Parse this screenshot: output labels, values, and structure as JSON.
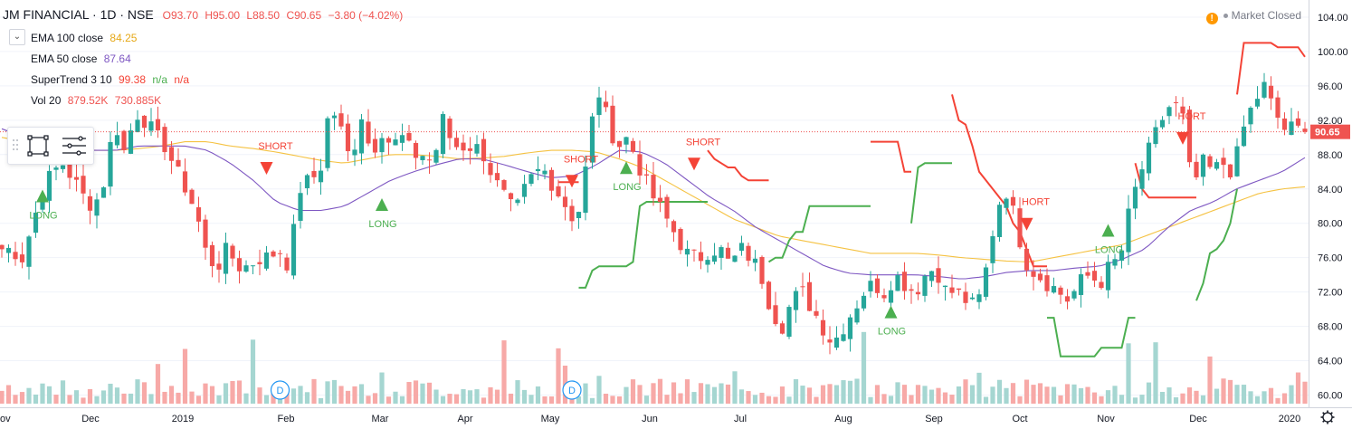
{
  "header": {
    "symbol": "JM FINANCIAL · 1D · NSE",
    "open": "O93.70",
    "high": "H95.00",
    "low": "L88.50",
    "close": "C90.65",
    "change": "−3.80 (−4.02%)",
    "market_status": "Market Closed",
    "warning_glyph": "!"
  },
  "indicators": {
    "ema100_label": "EMA 100 close",
    "ema100_value": "84.25",
    "ema50_label": "EMA 50 close",
    "ema50_value": "87.64",
    "st_label": "SuperTrend 3 10",
    "st_value": "99.38",
    "st_na1": "n/a",
    "st_na2": "n/a",
    "vol_label": "Vol 20",
    "vol_value1": "879.52K",
    "vol_value2": "730.885K"
  },
  "colors": {
    "up": "#26a69a",
    "down": "#ef5350",
    "ema100": "#f5c242",
    "ema50": "#7e57c2",
    "st_up": "#4caf50",
    "st_down": "#f44336",
    "last_price": "#ef5350"
  },
  "chart_data": {
    "type": "candlestick",
    "title": "JM FINANCIAL · 1D · NSE",
    "ylim": [
      59,
      106
    ],
    "y_ticks": [
      "104.00",
      "100.00",
      "96.00",
      "92.00",
      "88.00",
      "84.00",
      "80.00",
      "76.00",
      "72.00",
      "68.00",
      "64.00",
      "60.00"
    ],
    "x_labels": [
      "ov",
      "Dec",
      "2019",
      "Feb",
      "Mar",
      "Apr",
      "May",
      "Jun",
      "Jul",
      "Aug",
      "Sep",
      "Oct",
      "Nov",
      "Dec",
      "2020"
    ],
    "last_price_label": "90.65",
    "last_price": 90.65,
    "price_path": [
      77,
      77,
      76,
      80,
      84,
      86,
      87,
      85,
      83,
      82,
      85,
      92,
      88,
      93,
      92,
      90,
      89,
      86,
      84,
      81,
      76,
      75,
      77,
      75,
      75,
      76,
      76,
      77,
      75,
      84,
      85,
      86,
      94,
      91,
      87,
      93,
      88,
      91,
      89,
      90,
      88,
      88,
      87,
      92,
      89,
      89,
      89,
      88,
      85,
      83,
      81,
      84,
      86,
      86,
      84,
      82,
      80,
      87,
      96,
      92,
      89,
      90,
      87,
      84,
      82,
      80,
      78,
      76,
      76,
      77,
      77,
      75,
      77,
      76,
      74,
      70,
      68,
      71,
      72,
      70,
      68,
      66,
      68,
      70,
      72,
      73,
      72,
      74,
      73,
      72,
      74,
      75,
      72,
      72,
      71,
      70,
      75,
      82,
      84,
      79,
      75,
      74,
      73,
      72,
      71,
      73,
      74,
      73,
      75,
      76,
      82,
      86,
      89,
      92,
      94,
      93,
      84,
      87,
      86,
      87,
      86,
      91,
      94,
      96,
      93,
      91,
      91,
      90.65
    ],
    "ema100": [
      90,
      89.5,
      89,
      88.7,
      88.5,
      88.5,
      88.7,
      89,
      89.5,
      89.5,
      89,
      88.7,
      88.3,
      87.8,
      87.3,
      87,
      87.5,
      88,
      88,
      87.8,
      87.5,
      87.6,
      87.8,
      88.2,
      88.5,
      88.5,
      88.3,
      87.5,
      86.5,
      85,
      83.5,
      82,
      80.5,
      79.5,
      78.5,
      78,
      77.5,
      77,
      76.5,
      76.5,
      76.5,
      76.3,
      76,
      75.8,
      75.6,
      75.5,
      76,
      76.5,
      77,
      77.5,
      78.5,
      79.5,
      80.5,
      81.5,
      82.5,
      83.5,
      84,
      84.25
    ],
    "ema50": [
      91,
      90,
      89,
      88.5,
      88.5,
      88.5,
      89,
      89,
      89,
      88.5,
      87,
      85,
      82.5,
      81.5,
      81.5,
      82,
      83.5,
      85,
      86,
      86.8,
      87.5,
      87.5,
      86.8,
      86,
      85.3,
      85.5,
      86.8,
      88.5,
      88.3,
      87,
      85,
      83,
      81.5,
      79.5,
      78,
      76.5,
      75,
      74.2,
      74,
      74,
      74,
      73.8,
      73.5,
      73.8,
      74.3,
      74.5,
      74.5,
      74.8,
      75,
      75.8,
      77,
      79.5,
      81.5,
      82.5,
      84,
      85,
      86,
      87.64
    ],
    "supertrend": [
      {
        "trend": "down",
        "points": [
          [
            82,
            84.8
          ],
          [
            83,
            84.8
          ],
          [
            84,
            84.8
          ],
          [
            85,
            84.8
          ]
        ]
      },
      {
        "trend": "up",
        "points": [
          [
            85,
            72.5
          ],
          [
            86,
            72.5
          ],
          [
            87,
            74.5
          ],
          [
            88,
            75
          ],
          [
            89,
            75
          ],
          [
            90,
            75
          ],
          [
            91,
            75
          ],
          [
            92,
            75
          ],
          [
            93,
            75.5
          ],
          [
            94,
            82
          ],
          [
            95,
            82.5
          ],
          [
            96,
            82.5
          ],
          [
            97,
            82.5
          ],
          [
            98,
            82.5
          ],
          [
            99,
            82.5
          ],
          [
            100,
            82.5
          ],
          [
            101,
            82.5
          ],
          [
            102,
            82.5
          ],
          [
            103,
            82.5
          ],
          [
            104,
            82.5
          ]
        ]
      },
      {
        "trend": "down",
        "points": [
          [
            104,
            88.5
          ],
          [
            105,
            87.5
          ],
          [
            106,
            87
          ],
          [
            107,
            86.5
          ],
          [
            108,
            86.5
          ],
          [
            109,
            85.5
          ],
          [
            110,
            85
          ],
          [
            111,
            85
          ],
          [
            112,
            85
          ],
          [
            113,
            85
          ]
        ]
      },
      {
        "trend": "up",
        "points": [
          [
            113,
            75.5
          ],
          [
            114,
            76
          ],
          [
            115,
            76
          ],
          [
            116,
            78
          ],
          [
            117,
            79
          ],
          [
            118,
            79
          ],
          [
            119,
            82
          ],
          [
            120,
            82
          ],
          [
            121,
            82
          ],
          [
            122,
            82
          ],
          [
            123,
            82
          ],
          [
            124,
            82
          ],
          [
            125,
            82
          ],
          [
            126,
            82
          ],
          [
            127,
            82
          ],
          [
            128,
            82
          ]
        ]
      },
      {
        "trend": "down",
        "points": [
          [
            128,
            89.5
          ],
          [
            129,
            89.5
          ],
          [
            130,
            89.5
          ],
          [
            131,
            89.5
          ],
          [
            132,
            89.5
          ],
          [
            133,
            86
          ],
          [
            134,
            86
          ]
        ]
      },
      {
        "trend": "up",
        "points": [
          [
            134,
            80
          ],
          [
            135,
            86.5
          ],
          [
            136,
            87
          ],
          [
            137,
            87
          ],
          [
            138,
            87
          ],
          [
            139,
            87
          ],
          [
            140,
            87
          ]
        ]
      },
      {
        "trend": "down",
        "points": [
          [
            140,
            95
          ],
          [
            141,
            92
          ],
          [
            142,
            91.5
          ],
          [
            143,
            89
          ],
          [
            144,
            86
          ],
          [
            145,
            85
          ],
          [
            146,
            84
          ],
          [
            147,
            83
          ],
          [
            148,
            82
          ],
          [
            149,
            80
          ],
          [
            150,
            79
          ],
          [
            151,
            77
          ],
          [
            152,
            75
          ],
          [
            153,
            75
          ],
          [
            154,
            75
          ]
        ]
      },
      {
        "trend": "up",
        "points": [
          [
            154,
            69
          ],
          [
            155,
            69
          ],
          [
            156,
            64.5
          ],
          [
            157,
            64.5
          ],
          [
            158,
            64.5
          ],
          [
            159,
            64.5
          ],
          [
            160,
            64.5
          ],
          [
            161,
            64.5
          ],
          [
            162,
            65.5
          ],
          [
            163,
            65.5
          ],
          [
            164,
            65.5
          ],
          [
            165,
            65.5
          ],
          [
            166,
            69
          ],
          [
            167,
            69
          ]
        ]
      },
      {
        "trend": "down",
        "points": [
          [
            167,
            87
          ],
          [
            168,
            84
          ],
          [
            169,
            83
          ],
          [
            170,
            83
          ],
          [
            171,
            83
          ],
          [
            172,
            83
          ],
          [
            173,
            83
          ],
          [
            174,
            83
          ],
          [
            175,
            83
          ],
          [
            176,
            83
          ]
        ]
      },
      {
        "trend": "up",
        "points": [
          [
            176,
            71
          ],
          [
            177,
            73
          ],
          [
            178,
            76.5
          ],
          [
            179,
            77
          ],
          [
            180,
            78
          ],
          [
            181,
            80
          ],
          [
            182,
            84
          ]
        ]
      },
      {
        "trend": "down",
        "points": [
          [
            182,
            95
          ],
          [
            183,
            101
          ],
          [
            184,
            101
          ],
          [
            185,
            101
          ],
          [
            186,
            101
          ],
          [
            187,
            101
          ],
          [
            188,
            100.5
          ],
          [
            189,
            100.5
          ],
          [
            190,
            100.5
          ],
          [
            191,
            100.5
          ],
          [
            192,
            99.38
          ]
        ]
      }
    ],
    "signals": [
      {
        "type": "LONG",
        "label": "LONG"
      },
      {
        "type": "SHORT",
        "label": "SHORT"
      },
      {
        "type": "LONG",
        "label": "LONG"
      },
      {
        "type": "SHORT",
        "label": "SHORT"
      },
      {
        "type": "LONG",
        "label": "LONG"
      },
      {
        "type": "SHORT",
        "label": "SHORT"
      },
      {
        "type": "LONG",
        "label": "LONG"
      },
      {
        "type": "SHORT",
        "label": "HORT"
      },
      {
        "type": "LONG",
        "label": "LONG"
      },
      {
        "type": "SHORT",
        "label": "HORT"
      }
    ],
    "dividend_marker": "D",
    "dividend_markers": [
      {
        "label": "D"
      },
      {
        "label": "D"
      }
    ]
  }
}
